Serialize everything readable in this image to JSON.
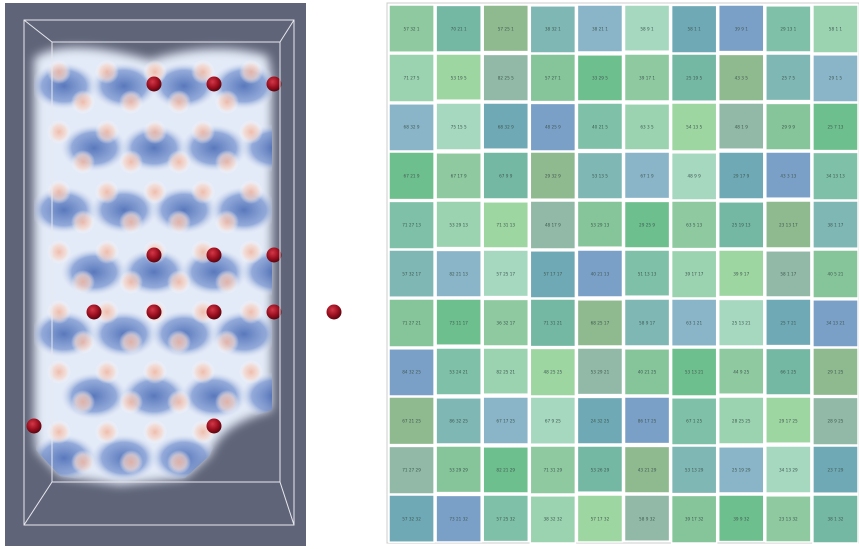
{
  "left_panel": {
    "colors": {
      "background": "#5f6478",
      "field_blue": "#4a6bb5",
      "field_light": "#dfe7f6",
      "field_warm": "#f0b9a3",
      "atom": "#9a0f1f",
      "box_edge": "#e8e8ee"
    },
    "rows": 8,
    "cols": 6,
    "visible_atoms": [
      [
        2,
        0
      ],
      [
        3,
        0
      ],
      [
        4,
        0
      ],
      [
        2,
        6
      ],
      [
        3,
        6
      ],
      [
        4,
        6
      ],
      [
        1,
        8
      ],
      [
        2,
        8
      ],
      [
        3,
        8
      ],
      [
        4,
        8
      ],
      [
        5,
        8
      ],
      [
        0,
        12
      ],
      [
        3,
        12
      ]
    ]
  },
  "grid": {
    "colors": {
      "border": "#5a7a6e",
      "palette": [
        "#8fc9a0",
        "#7fb7b5",
        "#6fa9b5",
        "#9bd3b0",
        "#86c59a",
        "#74b8a4",
        "#8ab5c8",
        "#7ba0c8",
        "#9ed6a2",
        "#6ebf8e",
        "#8fb98e",
        "#a6d8c0",
        "#7fc1a8",
        "#92b9a7"
      ]
    },
    "rows": [
      [
        "57 32 1",
        "70 21 1",
        "57 25 1",
        "38 32 1",
        "38 21 1",
        "58 9 1",
        "58 1 1",
        "39 9 1",
        "29 13 1",
        "58 1 1"
      ],
      [
        "71 27 5",
        "53 19 5",
        "82 25 5",
        "57 27 1",
        "33 29 5",
        "39 17 1",
        "25 19 5",
        "43 3 5",
        "25 7 5",
        "29 1 5"
      ],
      [
        "68 32 9",
        "75 15 5",
        "68 32 9",
        "48 25 9",
        "40 21 5",
        "63 3 5",
        "54 13 5",
        "48 1 9",
        "29 9 9",
        "25 7 13"
      ],
      [
        "67 21 9",
        "67 17 9",
        "67 9 9",
        "29 32 9",
        "53 13 5",
        "67 1 9",
        "48 9 9",
        "29 17 9",
        "43 3 13",
        "34 13 13"
      ],
      [
        "71 27 13",
        "53 29 13",
        "71 31 13",
        "48 17 9",
        "53 29 13",
        "29 25 9",
        "63 5 13",
        "25 19 13",
        "23 13 17",
        "38 1 17"
      ],
      [
        "57 32 17",
        "82 21 13",
        "57 25 17",
        "57 17 17",
        "40 21 13",
        "51 13 13",
        "39 17 17",
        "39 9 17",
        "58 1 17",
        "40 5 21"
      ],
      [
        "71 27 21",
        "73 11 17",
        "36 32 17",
        "71 31 21",
        "68 25 17",
        "58 9 17",
        "63 1 21",
        "25 13 21",
        "25 7 21",
        "34 13 21"
      ],
      [
        "84 32 25",
        "53 24 21",
        "82 25 21",
        "48 25 25",
        "53 29 21",
        "40 21 25",
        "53 13 21",
        "44 9 25",
        "66 1 25",
        "29 1 25"
      ],
      [
        "67 21 25",
        "86 32 25",
        "67 17 25",
        "67 9 25",
        "24 32 25",
        "86 17 25",
        "67 1 25",
        "28 25 25",
        "29 17 25",
        "28 9 25"
      ],
      [
        "71 27 29",
        "53 29 29",
        "82 21 29",
        "71 31 29",
        "53 26 29",
        "43 21 29",
        "53 13 29",
        "25 19 29",
        "34 13 29",
        "23 7 29"
      ],
      [
        "57 32 32",
        "73 21 32",
        "57 25 32",
        "38 32 32",
        "57 17 32",
        "58 9 32",
        "39 17 32",
        "39 9 32",
        "23 13 32",
        "38 1 32"
      ]
    ]
  }
}
